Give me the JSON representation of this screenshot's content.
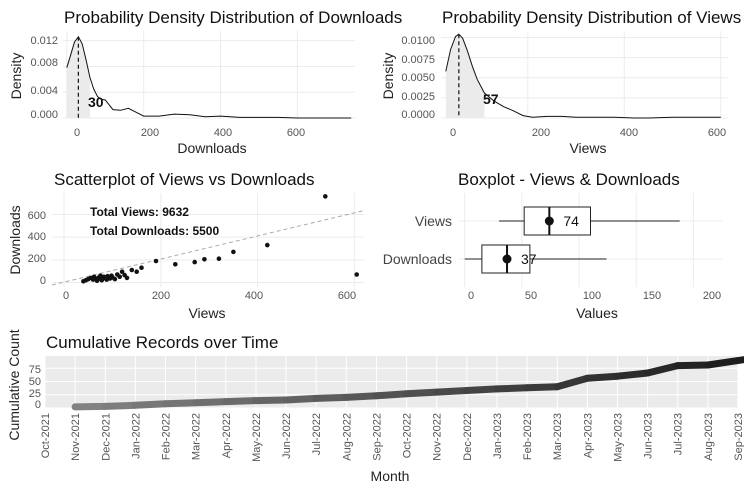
{
  "chart_data": [
    {
      "type": "area",
      "title": "Probability Density Distribution of Downloads",
      "xlabel": "Downloads",
      "ylabel": "Density",
      "xlim": [
        -10,
        750
      ],
      "ylim": [
        0,
        0.0135
      ],
      "xticks": [
        "0",
        "200",
        "400",
        "600"
      ],
      "xtick_values": [
        0,
        200,
        400,
        600
      ],
      "yticks": [
        "0.000",
        "0.004",
        "0.008",
        "0.012"
      ],
      "ytick_values": [
        0,
        0.004,
        0.008,
        0.012
      ],
      "x": [
        0,
        10,
        20,
        30,
        40,
        50,
        60,
        70,
        80,
        90,
        100,
        120,
        140,
        160,
        180,
        200,
        240,
        280,
        320,
        360,
        400,
        450,
        500,
        550,
        600,
        650,
        700,
        740
      ],
      "y": [
        0.0078,
        0.0098,
        0.0118,
        0.0126,
        0.0115,
        0.009,
        0.0063,
        0.0045,
        0.0033,
        0.0029,
        0.0028,
        0.0013,
        0.0012,
        0.0015,
        0.0009,
        0.0003,
        0.0003,
        0.0006,
        0.0005,
        0.0002,
        0.0003,
        0.0001,
        0.0001,
        0.0001,
        0.0,
        0.0,
        0.0,
        0.0
      ],
      "shaded_until": 60,
      "marker_x": 30,
      "marker_label": "30"
    },
    {
      "type": "area",
      "title": "Probability Density Distribution of Views",
      "xlabel": "Views",
      "ylabel": "Density",
      "xlim": [
        20,
        615
      ],
      "ylim": [
        0,
        0.0108
      ],
      "xticks": [
        "0",
        "200",
        "400",
        "600"
      ],
      "xtick_values": [
        0,
        200,
        400,
        600
      ],
      "yticks": [
        "0.0000",
        "0.0025",
        "0.0050",
        "0.0075",
        "0.0100"
      ],
      "ytick_values": [
        0,
        0.0025,
        0.005,
        0.0075,
        0.01
      ],
      "x": [
        30,
        40,
        50,
        57,
        65,
        75,
        85,
        95,
        110,
        130,
        150,
        170,
        190,
        210,
        240,
        270,
        300,
        340,
        380,
        420,
        450,
        500,
        530,
        560,
        600
      ],
      "y": [
        0.0058,
        0.0085,
        0.0101,
        0.0104,
        0.0099,
        0.0083,
        0.0064,
        0.0048,
        0.0031,
        0.0021,
        0.0014,
        0.0009,
        0.0003,
        0.0001,
        0.0002,
        0.0002,
        0.0001,
        0.0001,
        0.0001,
        0.0,
        0.0,
        0.0001,
        0.0001,
        0.0001,
        0.0001
      ],
      "shaded_until": 110,
      "marker_x": 57,
      "marker_label": "57"
    },
    {
      "type": "scatter",
      "title": "Scatterplot of Views vs Downloads",
      "xlabel": "Views",
      "ylabel": "Downloads",
      "xlim": [
        -25,
        620
      ],
      "ylim": [
        -40,
        790
      ],
      "xticks": [
        "0",
        "200",
        "400",
        "600"
      ],
      "xtick_values": [
        0,
        200,
        400,
        600
      ],
      "yticks": [
        "0",
        "200",
        "400",
        "600"
      ],
      "ytick_values": [
        0,
        200,
        400,
        600
      ],
      "points": [
        [
          40,
          10
        ],
        [
          45,
          20
        ],
        [
          50,
          30
        ],
        [
          55,
          40
        ],
        [
          60,
          25
        ],
        [
          62,
          50
        ],
        [
          65,
          35
        ],
        [
          68,
          15
        ],
        [
          70,
          30
        ],
        [
          72,
          45
        ],
        [
          75,
          60
        ],
        [
          78,
          20
        ],
        [
          80,
          35
        ],
        [
          82,
          50
        ],
        [
          85,
          40
        ],
        [
          88,
          25
        ],
        [
          90,
          55
        ],
        [
          95,
          35
        ],
        [
          98,
          60
        ],
        [
          100,
          45
        ],
        [
          105,
          30
        ],
        [
          110,
          70
        ],
        [
          115,
          50
        ],
        [
          120,
          95
        ],
        [
          125,
          65
        ],
        [
          130,
          40
        ],
        [
          140,
          110
        ],
        [
          150,
          95
        ],
        [
          160,
          130
        ],
        [
          190,
          190
        ],
        [
          230,
          160
        ],
        [
          270,
          180
        ],
        [
          290,
          205
        ],
        [
          320,
          210
        ],
        [
          350,
          270
        ],
        [
          420,
          330
        ],
        [
          540,
          760
        ],
        [
          605,
          70
        ]
      ],
      "trend": [
        [
          -25,
          -22
        ],
        [
          620,
          635
        ]
      ],
      "annotations": [
        "Total Views: 9632",
        "Total Downloads: 5500"
      ]
    },
    {
      "type": "box",
      "title": "Boxplot - Views & Downloads",
      "xlabel": "Values",
      "xlim": [
        -5,
        225
      ],
      "xticks": [
        "0",
        "50",
        "100",
        "150",
        "200"
      ],
      "xtick_values": [
        0,
        50,
        100,
        150,
        200
      ],
      "categories": [
        "Views",
        "Downloads"
      ],
      "boxes": [
        {
          "name": "Views",
          "whisker_low": 30,
          "q1": 52,
          "median": 74,
          "q3": 110,
          "whisker_high": 188,
          "label": "74"
        },
        {
          "name": "Downloads",
          "whisker_low": 0,
          "q1": 15,
          "median": 37,
          "q3": 57,
          "whisker_high": 124,
          "label": "37"
        }
      ]
    },
    {
      "type": "line",
      "title": "Cumulative Records over Time",
      "xlabel": "Month",
      "ylabel": "Cumulative Count",
      "ylim": [
        0,
        98
      ],
      "yticks": [
        "0",
        "25",
        "50",
        "75"
      ],
      "ytick_values": [
        0,
        25,
        50,
        75
      ],
      "months": [
        "Oct-2021",
        "Nov-2021",
        "Dec-2021",
        "Jan-2022",
        "Feb-2022",
        "Mar-2022",
        "Apr-2022",
        "May-2022",
        "Jun-2022",
        "Jul-2022",
        "Aug-2022",
        "Sep-2022",
        "Oct-2022",
        "Nov-2022",
        "Dec-2022",
        "Jan-2023",
        "Feb-2023",
        "Mar-2023",
        "Apr-2023",
        "May-2023",
        "Jun-2023",
        "Jul-2023",
        "Aug-2023",
        "Sep-2023"
      ],
      "x": [
        1,
        2,
        3,
        4,
        5,
        6,
        7,
        8,
        9,
        10,
        11,
        12,
        13,
        14,
        15,
        16,
        17,
        18,
        19,
        20,
        21,
        22,
        23.3
      ],
      "y": [
        2,
        3,
        5,
        8,
        10,
        12,
        14,
        15,
        18,
        20,
        23,
        27,
        30,
        33,
        36,
        38,
        40,
        56,
        60,
        66,
        80,
        81,
        92
      ]
    }
  ]
}
